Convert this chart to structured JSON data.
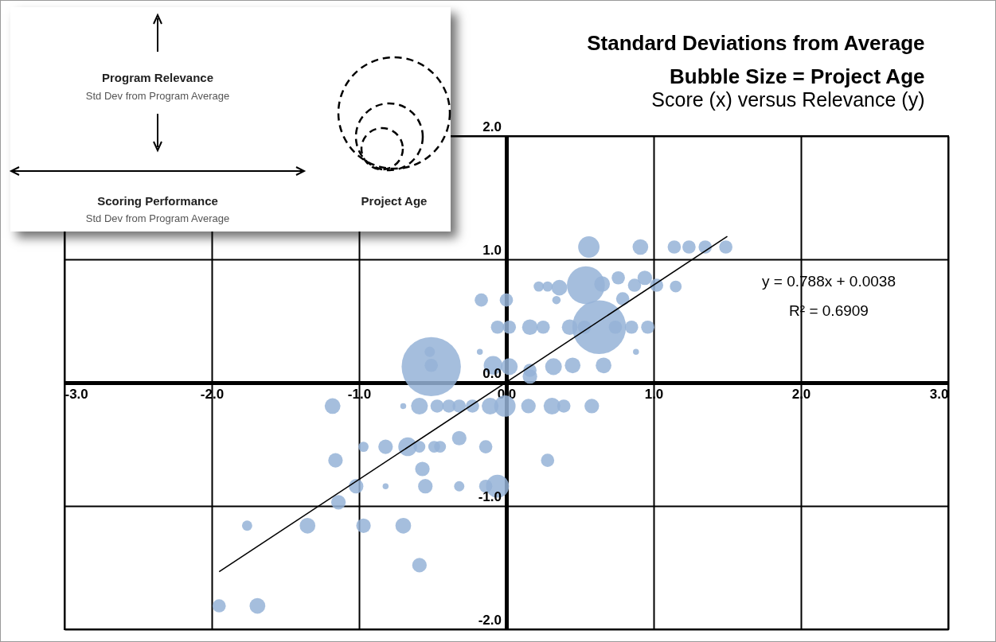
{
  "chart_data": {
    "type": "bubble",
    "title": "Standard Deviations from Average\nBubble Size = Project Age",
    "subtitle": "Score (x) versus Relevance (y)",
    "xlim": [
      -3,
      3
    ],
    "xticks": [
      {
        "value": -3,
        "label": "-3.0"
      },
      {
        "value": -2,
        "label": "-2.0"
      },
      {
        "value": -1,
        "label": "-1.0"
      },
      {
        "value": 0,
        "label": "0.0"
      },
      {
        "value": 1,
        "label": "1.0"
      },
      {
        "value": 2,
        "label": "2.0"
      },
      {
        "value": 3,
        "label": "3.0"
      }
    ],
    "ylim": [
      -2,
      2
    ],
    "yticks": [
      {
        "value": -2,
        "label": "-2.0"
      },
      {
        "value": -1,
        "label": "-1.0"
      },
      {
        "value": 0,
        "label": "0.0"
      },
      {
        "value": 1,
        "label": "1.0"
      },
      {
        "value": 2,
        "label": "2.0"
      }
    ],
    "grid": true,
    "series": [
      {
        "color": "#95b3d7",
        "x": [
          0.56,
          0.91,
          1.14,
          1.24,
          1.35,
          1.49,
          0.54,
          0.22,
          0.28,
          0.36,
          0.65,
          0.76,
          0.87,
          0.94,
          1.02,
          1.15,
          0.34,
          -0.17,
          0.0,
          0.79,
          0.63,
          -0.06,
          0.02,
          0.16,
          0.25,
          0.43,
          0.53,
          0.74,
          0.85,
          0.96,
          -0.51,
          -0.52,
          -0.51,
          -0.18,
          -0.09,
          0.02,
          0.16,
          0.32,
          0.45,
          0.66,
          0.16,
          0.88,
          -1.18,
          -0.7,
          -0.59,
          -0.47,
          -0.39,
          -0.32,
          -0.23,
          -0.11,
          -0.01,
          0.15,
          0.31,
          0.39,
          0.58,
          -0.97,
          -0.82,
          -0.67,
          -0.59,
          -0.49,
          -0.45,
          -0.32,
          -0.14,
          0.28,
          -1.16,
          -0.57,
          -1.02,
          -0.82,
          -0.55,
          -0.32,
          -0.14,
          -0.06,
          -1.14,
          -1.76,
          -1.35,
          -0.97,
          -0.7,
          -0.59,
          -1.95,
          -1.69
        ],
        "values": [
          1.1,
          1.1,
          1.1,
          1.1,
          1.1,
          1.1,
          0.79,
          0.78,
          0.78,
          0.77,
          0.8,
          0.85,
          0.79,
          0.85,
          0.79,
          0.78,
          0.67,
          0.67,
          0.67,
          0.68,
          0.45,
          0.45,
          0.45,
          0.45,
          0.45,
          0.45,
          0.45,
          0.45,
          0.45,
          0.45,
          0.13,
          0.25,
          0.14,
          0.25,
          0.14,
          0.13,
          0.1,
          0.13,
          0.14,
          0.14,
          0.05,
          0.25,
          -0.19,
          -0.19,
          -0.19,
          -0.19,
          -0.19,
          -0.19,
          -0.19,
          -0.19,
          -0.19,
          -0.19,
          -0.19,
          -0.19,
          -0.19,
          -0.52,
          -0.52,
          -0.52,
          -0.52,
          -0.52,
          -0.52,
          -0.45,
          -0.52,
          -0.63,
          -0.63,
          -0.7,
          -0.84,
          -0.84,
          -0.84,
          -0.84,
          -0.84,
          -0.84,
          -0.97,
          -1.16,
          -1.16,
          -1.16,
          -1.16,
          -1.48,
          -1.81,
          -1.81
        ],
        "sizes": [
          0.13,
          0.07,
          0.05,
          0.05,
          0.05,
          0.05,
          0.41,
          0.03,
          0.03,
          0.07,
          0.07,
          0.05,
          0.05,
          0.06,
          0.05,
          0.04,
          0.02,
          0.05,
          0.05,
          0.05,
          0.82,
          0.05,
          0.05,
          0.07,
          0.05,
          0.07,
          0.05,
          0.05,
          0.05,
          0.05,
          1,
          0.03,
          0.05,
          0.01,
          0.1,
          0.08,
          0.05,
          0.08,
          0.07,
          0.07,
          0.06,
          0.01,
          0.07,
          0.01,
          0.08,
          0.05,
          0.05,
          0.05,
          0.05,
          0.08,
          0.13,
          0.06,
          0.08,
          0.05,
          0.06,
          0.03,
          0.06,
          0.1,
          0.04,
          0.04,
          0.04,
          0.06,
          0.05,
          0.05,
          0.06,
          0.06,
          0.06,
          0.01,
          0.06,
          0.03,
          0.05,
          0.15,
          0.06,
          0.03,
          0.07,
          0.06,
          0.07,
          0.06,
          0.05,
          0.07
        ]
      },
      {
        "type": "line",
        "color": "#000000",
        "x": [
          -1.95,
          1.5
        ],
        "values": [
          -1.533,
          1.186
        ]
      }
    ],
    "annotations": [
      "Program Relevance",
      "Std Dev from Program Average",
      "Scoring Performance",
      "Std Dev from Program Average",
      "Project Age",
      "y = 0.788x + 0.0038",
      "R² = 0.6909"
    ]
  }
}
